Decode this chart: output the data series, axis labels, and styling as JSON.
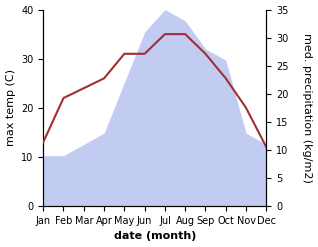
{
  "months": [
    "Jan",
    "Feb",
    "Mar",
    "Apr",
    "May",
    "Jun",
    "Jul",
    "Aug",
    "Sep",
    "Oct",
    "Nov",
    "Dec"
  ],
  "temperature": [
    13,
    22,
    24,
    26,
    31,
    31,
    35,
    35,
    31,
    26,
    20,
    12
  ],
  "precipitation": [
    9,
    9,
    11,
    13,
    22,
    31,
    35,
    33,
    28,
    26,
    13,
    11
  ],
  "temp_color": "#a03030",
  "precip_fill_color": "#b8c4f0",
  "precip_alpha": 0.85,
  "left_ylim": [
    0,
    40
  ],
  "right_ylim": [
    0,
    35
  ],
  "left_yticks": [
    0,
    10,
    20,
    30,
    40
  ],
  "right_yticks": [
    0,
    5,
    10,
    15,
    20,
    25,
    30,
    35
  ],
  "xlabel": "date (month)",
  "ylabel_left": "max temp (C)",
  "ylabel_right": "med. precipitation (kg/m2)",
  "label_fontsize": 8,
  "tick_fontsize": 7
}
